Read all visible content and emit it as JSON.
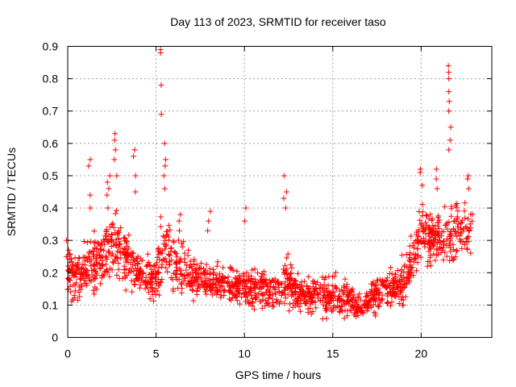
{
  "chart_data": {
    "type": "scatter",
    "title": "Day 113 of 2023, SRMTID for receiver taso",
    "xlabel": "GPS time / hours",
    "ylabel": "SRMTID / TECUs",
    "xlim": [
      0,
      24
    ],
    "ylim": [
      0,
      0.9
    ],
    "xticks": [
      0,
      5,
      10,
      15,
      20
    ],
    "yticks": [
      0,
      0.1,
      0.2,
      0.3,
      0.4,
      0.5,
      0.6,
      0.7,
      0.8,
      0.9
    ],
    "xtick_labels": [
      "0",
      "5",
      "10",
      "15",
      "20"
    ],
    "ytick_labels": [
      "0",
      "0.1",
      "0.2",
      "0.3",
      "0.4",
      "0.5",
      "0.6",
      "0.7",
      "0.8",
      "0.9"
    ],
    "grid": true,
    "marker": "+",
    "color": "#ff0000",
    "x_range_of_data": [
      0,
      22.9
    ],
    "envelope": {
      "x": [
        0.0,
        1.0,
        2.0,
        2.7,
        3.5,
        4.0,
        4.5,
        5.0,
        5.3,
        5.7,
        6.5,
        8.0,
        10.0,
        12.0,
        12.3,
        13.0,
        14.0,
        15.0,
        16.0,
        16.6,
        17.0,
        18.0,
        19.0,
        19.5,
        20.0,
        20.5,
        21.0,
        21.6,
        22.0,
        22.9
      ],
      "low": [
        0.09,
        0.11,
        0.12,
        0.14,
        0.13,
        0.12,
        0.1,
        0.09,
        0.1,
        0.1,
        0.1,
        0.09,
        0.08,
        0.08,
        0.07,
        0.06,
        0.06,
        0.06,
        0.05,
        0.04,
        0.06,
        0.08,
        0.09,
        0.14,
        0.2,
        0.2,
        0.19,
        0.2,
        0.21,
        0.24
      ],
      "high": [
        0.27,
        0.32,
        0.38,
        0.45,
        0.34,
        0.3,
        0.26,
        0.28,
        0.42,
        0.45,
        0.3,
        0.24,
        0.23,
        0.22,
        0.3,
        0.21,
        0.2,
        0.21,
        0.18,
        0.13,
        0.17,
        0.22,
        0.25,
        0.34,
        0.42,
        0.44,
        0.42,
        0.43,
        0.45,
        0.45
      ]
    },
    "spikes": [
      {
        "x": 0.0,
        "y": [
          0.25,
          0.27,
          0.3
        ]
      },
      {
        "x": 1.2,
        "y": [
          0.4,
          0.44,
          0.53,
          0.55
        ]
      },
      {
        "x": 2.3,
        "y": [
          0.4,
          0.44,
          0.46,
          0.48,
          0.5
        ]
      },
      {
        "x": 2.7,
        "y": [
          0.5,
          0.55,
          0.58,
          0.61,
          0.63
        ]
      },
      {
        "x": 3.8,
        "y": [
          0.45,
          0.5,
          0.56,
          0.58
        ]
      },
      {
        "x": 5.3,
        "y": [
          0.69,
          0.78,
          0.88,
          0.89
        ]
      },
      {
        "x": 5.5,
        "y": [
          0.46,
          0.5,
          0.53,
          0.55,
          0.6
        ]
      },
      {
        "x": 6.3,
        "y": [
          0.33,
          0.36,
          0.38
        ]
      },
      {
        "x": 8.0,
        "y": [
          0.33,
          0.36,
          0.39
        ]
      },
      {
        "x": 10.0,
        "y": [
          0.36,
          0.4
        ]
      },
      {
        "x": 12.3,
        "y": [
          0.4,
          0.43,
          0.45,
          0.5
        ]
      },
      {
        "x": 20.0,
        "y": [
          0.47,
          0.51,
          0.52
        ]
      },
      {
        "x": 20.9,
        "y": [
          0.46,
          0.49,
          0.52
        ]
      },
      {
        "x": 21.6,
        "y": [
          0.58,
          0.61,
          0.65,
          0.7,
          0.73,
          0.76,
          0.8,
          0.82,
          0.84
        ]
      },
      {
        "x": 22.7,
        "y": [
          0.46,
          0.49,
          0.5
        ]
      }
    ]
  }
}
